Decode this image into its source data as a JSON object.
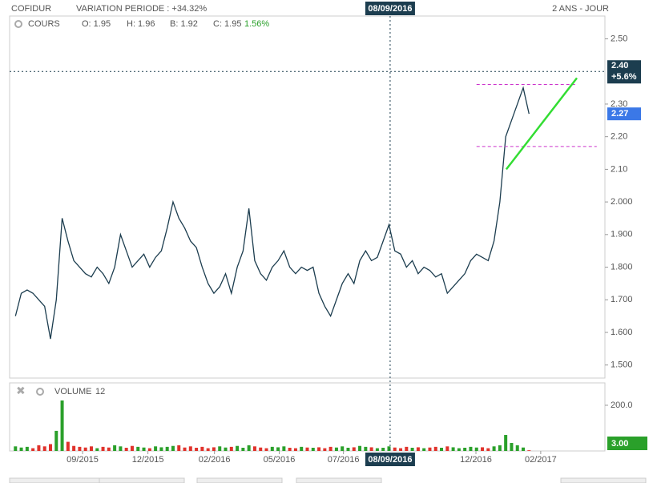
{
  "chart_data": {
    "type": "line",
    "symbol": "COFIDUR",
    "variation": "VARIATION PERIODE : +34.32%",
    "period": "2 ANS - JOUR",
    "price_panel_label": "COURS",
    "ohlc": {
      "open": "O: 1.95",
      "high": "H: 1.96",
      "low": "B: 1.92",
      "close": "C: 1.95",
      "change": "1.56%"
    },
    "volume_panel_label": "VOLUME",
    "volume_period": "12",
    "series": [
      {
        "name": "COURS",
        "color": "#1c3d4f",
        "values": [
          1.65,
          1.72,
          1.73,
          1.72,
          1.7,
          1.68,
          1.58,
          1.7,
          1.95,
          1.88,
          1.82,
          1.8,
          1.78,
          1.77,
          1.8,
          1.78,
          1.75,
          1.8,
          1.9,
          1.85,
          1.8,
          1.82,
          1.84,
          1.8,
          1.83,
          1.85,
          1.92,
          2.0,
          1.95,
          1.92,
          1.88,
          1.86,
          1.8,
          1.75,
          1.72,
          1.74,
          1.78,
          1.72,
          1.8,
          1.85,
          1.98,
          1.82,
          1.78,
          1.76,
          1.8,
          1.82,
          1.85,
          1.8,
          1.78,
          1.8,
          1.79,
          1.8,
          1.72,
          1.68,
          1.65,
          1.7,
          1.75,
          1.78,
          1.75,
          1.82,
          1.85,
          1.82,
          1.83,
          1.88,
          1.93,
          1.85,
          1.84,
          1.8,
          1.82,
          1.78,
          1.8,
          1.79,
          1.77,
          1.78,
          1.72,
          1.74,
          1.76,
          1.78,
          1.82,
          1.84,
          1.83,
          1.82,
          1.88,
          2.0,
          2.2,
          2.25,
          2.3,
          2.35,
          2.27
        ]
      },
      {
        "name": "VOLUME",
        "axis": "y2",
        "values": [
          20,
          15,
          18,
          12,
          25,
          20,
          30,
          88,
          221,
          40,
          22,
          18,
          15,
          20,
          12,
          18,
          15,
          25,
          20,
          14,
          22,
          18,
          15,
          12,
          20,
          16,
          18,
          22,
          25,
          15,
          20,
          14,
          18,
          12,
          16,
          20,
          15,
          18,
          22,
          14,
          25,
          20,
          15,
          12,
          18,
          16,
          20,
          14,
          12,
          18,
          15,
          14,
          16,
          12,
          18,
          15,
          20,
          14,
          16,
          22,
          18,
          16,
          12,
          14,
          20,
          15,
          12,
          18,
          14,
          16,
          12,
          15,
          18,
          14,
          20,
          16,
          12,
          14,
          18,
          15,
          16,
          12,
          20,
          25,
          70,
          35,
          25,
          15,
          3
        ]
      }
    ],
    "up_color": "#2aa02a",
    "down_color": "#e0322b",
    "ylim": [
      1.46,
      2.57
    ],
    "yticks": [
      {
        "value": 1.5,
        "label": "1.500"
      },
      {
        "value": 1.6,
        "label": "1.600"
      },
      {
        "value": 1.7,
        "label": "1.700"
      },
      {
        "value": 1.8,
        "label": "1.800"
      },
      {
        "value": 1.9,
        "label": "1.900"
      },
      {
        "value": 2.0,
        "label": "2.000"
      },
      {
        "value": 2.1,
        "label": "2.10"
      },
      {
        "value": 2.2,
        "label": "2.20"
      },
      {
        "value": 2.3,
        "label": "2.30"
      },
      {
        "value": 2.5,
        "label": "2.50"
      }
    ],
    "y2lim": [
      0,
      298
    ],
    "y2ticks": [
      {
        "value": 200,
        "label": "200.0"
      }
    ],
    "xlim": [
      -1,
      101
    ],
    "xticks": [
      {
        "value": 11.5,
        "label": "09/2015"
      },
      {
        "value": 22.7,
        "label": "12/2015"
      },
      {
        "value": 34.1,
        "label": "02/2016"
      },
      {
        "value": 45.2,
        "label": "05/2016"
      },
      {
        "value": 56.2,
        "label": "07/2016"
      },
      {
        "value": 78.9,
        "label": "12/2016"
      },
      {
        "value": 90,
        "label": "02/2017"
      }
    ],
    "crosshair": {
      "x": 64.2,
      "date": "08/09/2016",
      "price": 2.4,
      "price_label": "2.40",
      "change": "+5.6%"
    },
    "last_price": {
      "value": 2.27,
      "label": "2.27"
    },
    "last_volume": {
      "value": 3,
      "label": "3.00"
    },
    "annotations": [
      {
        "type": "hline",
        "color": "#cc33cc",
        "x": [
          79,
          95.9
        ],
        "y": [
          2.36,
          2.36
        ]
      },
      {
        "type": "hline",
        "color": "#cc33cc",
        "x": [
          79,
          99.6
        ],
        "y": [
          2.17,
          2.17
        ]
      },
      {
        "type": "trend",
        "color": "#33dd33",
        "x": [
          84.1,
          96.2
        ],
        "y": [
          2.1,
          2.38
        ]
      }
    ]
  }
}
